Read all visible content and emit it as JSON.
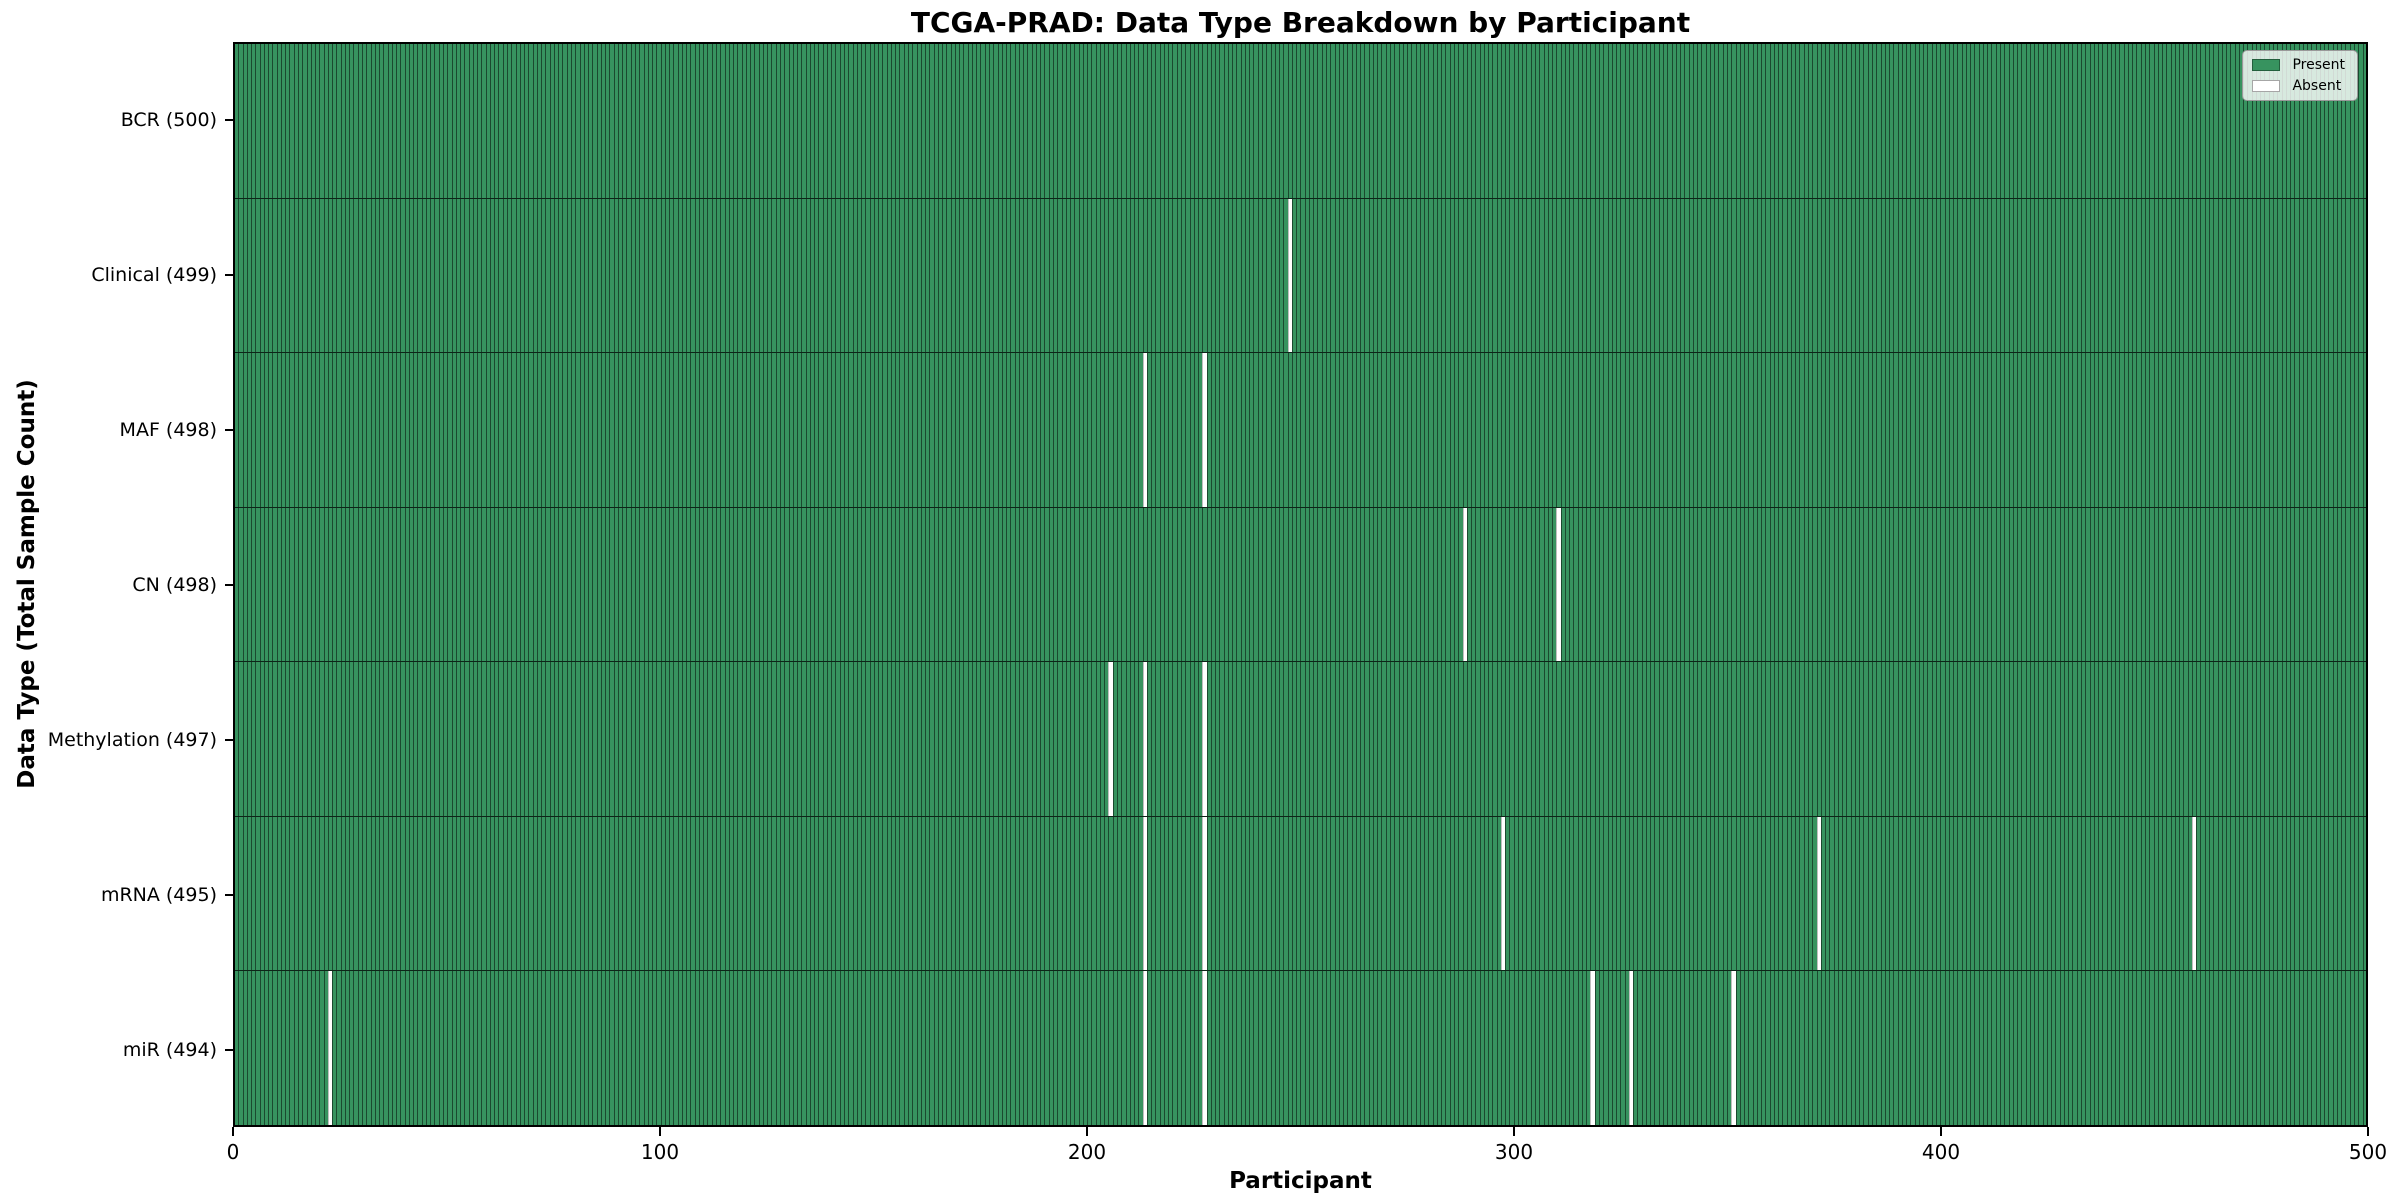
{
  "title": "TCGA-PRAD: Data Type Breakdown by Participant",
  "x_axis": {
    "label": "Participant"
  },
  "y_axis": {
    "label": "Data Type (Total Sample Count)"
  },
  "legend": {
    "present_label": "Present",
    "absent_label": "Absent"
  },
  "colors": {
    "present": "#37935f",
    "absent": "#ffffff",
    "cell_edge": "rgba(0,0,0,0.5)"
  },
  "chart_data": {
    "type": "heatmap",
    "title": "TCGA-PRAD: Data Type Breakdown by Participant",
    "xlabel": "Participant",
    "ylabel": "Data Type (Total Sample Count)",
    "x_range": [
      0,
      500
    ],
    "x_ticks": [
      0,
      100,
      200,
      300,
      400,
      500
    ],
    "n_participants": 500,
    "grid": false,
    "legend_position": "upper right",
    "legend_entries": [
      "Present",
      "Absent"
    ],
    "rows": [
      {
        "label": "BCR (500)",
        "data_type": "BCR",
        "present_count": 500,
        "absent_participants": []
      },
      {
        "label": "Clinical (499)",
        "data_type": "Clinical",
        "present_count": 499,
        "absent_participants": [
          247
        ]
      },
      {
        "label": "MAF (498)",
        "data_type": "MAF",
        "present_count": 498,
        "absent_participants": [
          213,
          227
        ]
      },
      {
        "label": "CN (498)",
        "data_type": "CN",
        "present_count": 498,
        "absent_participants": [
          288,
          310
        ]
      },
      {
        "label": "Methylation (497)",
        "data_type": "Methylation",
        "present_count": 497,
        "absent_participants": [
          205,
          213,
          227
        ]
      },
      {
        "label": "mRNA (495)",
        "data_type": "mRNA",
        "present_count": 495,
        "absent_participants": [
          213,
          227,
          297,
          371,
          459
        ]
      },
      {
        "label": "miR (494)",
        "data_type": "miR",
        "present_count": 494,
        "absent_participants": [
          22,
          213,
          227,
          318,
          327,
          351
        ]
      }
    ]
  }
}
